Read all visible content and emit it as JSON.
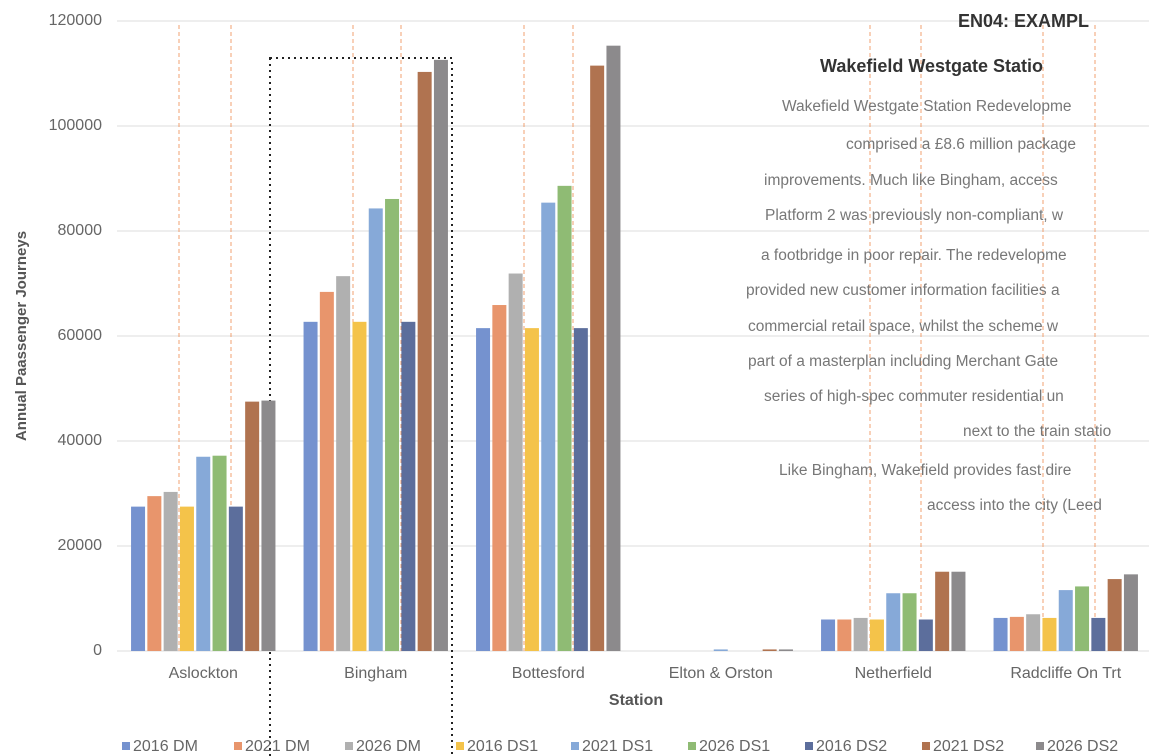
{
  "chart_data": {
    "type": "bar",
    "xlabel": "Station",
    "ylabel": "Annual Paassenger Journeys",
    "categories": [
      "Aslockton",
      "Bingham",
      "Bottesford",
      "Elton & Orston",
      "Netherfield",
      "Radcliffe On Trt"
    ],
    "series": [
      {
        "name": "2016 DM",
        "color": "#7592cf",
        "values": [
          27500,
          62700,
          61500,
          0,
          6000,
          6300
        ]
      },
      {
        "name": "2021 DM",
        "color": "#e8956c",
        "values": [
          29500,
          68400,
          65900,
          0,
          6000,
          6500
        ]
      },
      {
        "name": "2026 DM",
        "color": "#b0b0b0",
        "values": [
          30300,
          71400,
          71900,
          0,
          6300,
          7000
        ]
      },
      {
        "name": "2016 DS1",
        "color": "#f4c34a",
        "values": [
          27500,
          62700,
          61500,
          0,
          6000,
          6300
        ]
      },
      {
        "name": "2021 DS1",
        "color": "#86a9d8",
        "values": [
          37000,
          84300,
          85400,
          300,
          11000,
          11600
        ]
      },
      {
        "name": "2026 DS1",
        "color": "#8fbb74",
        "values": [
          37200,
          86100,
          88600,
          0,
          11000,
          12300
        ]
      },
      {
        "name": "2016 DS2",
        "color": "#5c6e9c",
        "values": [
          27500,
          62700,
          61500,
          0,
          6000,
          6300
        ]
      },
      {
        "name": "2021 DS2",
        "color": "#b07350",
        "values": [
          47500,
          110300,
          111500,
          300,
          15100,
          13700
        ]
      },
      {
        "name": "2026 DS2",
        "color": "#8c8a8c",
        "values": [
          47700,
          112600,
          115300,
          300,
          15100,
          14600
        ]
      }
    ],
    "ylim": [
      0,
      120000
    ],
    "yticks": [
      0,
      20000,
      40000,
      60000,
      80000,
      100000,
      120000
    ],
    "grid": true,
    "legend": "bottom",
    "annotation": {
      "title": "EN04: EXAMPL",
      "subtitle": "Wakefield Westgate Statio",
      "lines": [
        "Wakefield Westgate Station Redevelopme",
        "comprised a £8.6 million package",
        "improvements. Much like Bingham, access",
        "Platform 2 was previously non-compliant, w",
        "a footbridge in poor repair. The redevelopme",
        "provided new customer information facilities a",
        "commercial retail space, whilst the scheme w",
        "part of a masterplan including Merchant Gate",
        "series of high-spec commuter residential un",
        "next to the train statio",
        "Like Bingham, Wakefield provides fast dire",
        "access into the city (Leed"
      ]
    }
  }
}
